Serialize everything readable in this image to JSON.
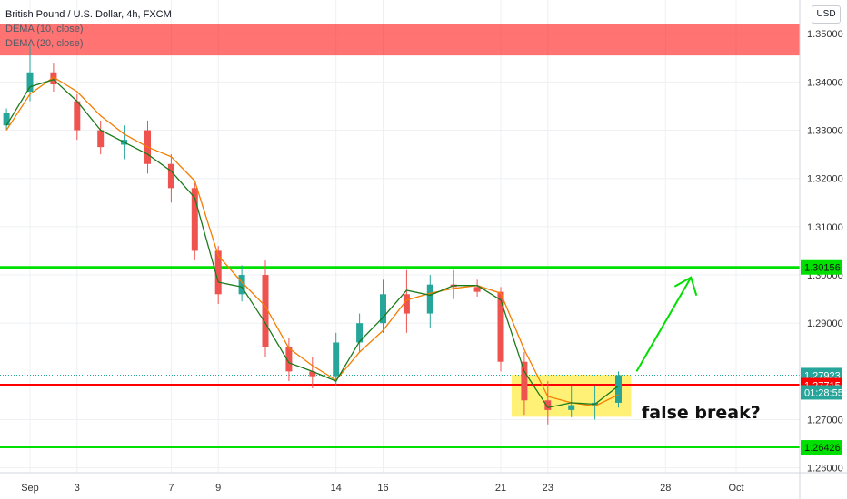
{
  "header": {
    "title": "British Pound / U.S. Dollar, 4h, FXCM",
    "indicators": [
      "DEMA (10, close)",
      "DEMA (20, close)"
    ],
    "currency_button": "USD"
  },
  "annotation": "false break?",
  "colors": {
    "up": "#26a69a",
    "down": "#ef5350",
    "dema_fast": "#1b7a1b",
    "dema_slow": "#f57c00",
    "support_line": "#ff0000",
    "green_line": "#00e000",
    "zone": "#ff0000",
    "highlight": "#ffeb3b"
  },
  "chart_data": {
    "type": "candlestick",
    "title": "British Pound / U.S. Dollar, 4h, FXCM",
    "y_ticks": [
      "1.35000",
      "1.34000",
      "1.33000",
      "1.32000",
      "1.31000",
      "1.30000",
      "1.29000",
      "1.27000",
      "1.26000"
    ],
    "ylim": [
      1.259,
      1.357
    ],
    "x_ticks": [
      {
        "date": "Sep 1",
        "label": "Sep"
      },
      {
        "date": "Sep 3",
        "label": "3"
      },
      {
        "date": "Sep 7",
        "label": "7"
      },
      {
        "date": "Sep 9",
        "label": "9"
      },
      {
        "date": "Sep 14",
        "label": "14"
      },
      {
        "date": "Sep 16",
        "label": "16"
      },
      {
        "date": "Sep 21",
        "label": "21"
      },
      {
        "date": "Sep 23",
        "label": "23"
      },
      {
        "date": "Sep 28",
        "label": "28"
      },
      {
        "date": "Oct 1",
        "label": "Oct"
      }
    ],
    "price_tags": [
      {
        "value": 1.30156,
        "label": "1.30156",
        "color": "#00e000"
      },
      {
        "value": 1.27923,
        "label": "1.27923",
        "color": "#26a69a"
      },
      {
        "value": 1.27715,
        "label": "1.27715",
        "color": "#ff0000"
      },
      {
        "value": 1.26426,
        "label": "1.26426",
        "color": "#00e000"
      }
    ],
    "countdown": "01:28:55",
    "levels": [
      {
        "value": 1.30156,
        "color": "#00e000"
      },
      {
        "value": 1.27715,
        "color": "#ff0000"
      },
      {
        "value": 1.26426,
        "color": "#00e000"
      }
    ],
    "zone": [
      1.3455,
      1.352
    ],
    "highlight": {
      "from": "Sep 22",
      "to": "Sep 26",
      "low": 1.2706,
      "high": 1.2793
    },
    "arrow": {
      "from": {
        "date": "Sep 27",
        "value": 1.28
      },
      "to": {
        "date": "Sep 28",
        "value": 1.2995
      }
    },
    "dema_fast": [
      [
        "Aug 31",
        1.331
      ],
      [
        "Sep 1",
        1.339
      ],
      [
        "Sep 2",
        1.3405
      ],
      [
        "Sep 3",
        1.336
      ],
      [
        "Sep 4",
        1.33
      ],
      [
        "Sep 5",
        1.3275
      ],
      [
        "Sep 6",
        1.325
      ],
      [
        "Sep 7",
        1.3215
      ],
      [
        "Sep 8",
        1.316
      ],
      [
        "Sep 9",
        1.2985
      ],
      [
        "Sep 10",
        1.2975
      ],
      [
        "Sep 11",
        1.29
      ],
      [
        "Sep 12",
        1.2818
      ],
      [
        "Sep 13",
        1.28
      ],
      [
        "Sep 14",
        1.278
      ],
      [
        "Sep 15",
        1.2862
      ],
      [
        "Sep 16",
        1.2912
      ],
      [
        "Sep 17",
        1.2968
      ],
      [
        "Sep 18",
        1.2958
      ],
      [
        "Sep 19",
        1.2978
      ],
      [
        "Sep 20",
        1.2978
      ],
      [
        "Sep 21",
        1.2948
      ],
      [
        "Sep 22",
        1.28
      ],
      [
        "Sep 23",
        1.2725
      ],
      [
        "Sep 24",
        1.2735
      ],
      [
        "Sep 25",
        1.2732
      ],
      [
        "Sep 26",
        1.277
      ]
    ],
    "dema_slow": [
      [
        "Aug 31",
        1.33
      ],
      [
        "Sep 1",
        1.3375
      ],
      [
        "Sep 2",
        1.341
      ],
      [
        "Sep 3",
        1.338
      ],
      [
        "Sep 4",
        1.333
      ],
      [
        "Sep 5",
        1.3292
      ],
      [
        "Sep 6",
        1.3265
      ],
      [
        "Sep 7",
        1.3245
      ],
      [
        "Sep 8",
        1.3195
      ],
      [
        "Sep 9",
        1.304
      ],
      [
        "Sep 10",
        1.2985
      ],
      [
        "Sep 11",
        1.2935
      ],
      [
        "Sep 12",
        1.2848
      ],
      [
        "Sep 13",
        1.2812
      ],
      [
        "Sep 14",
        1.2782
      ],
      [
        "Sep 15",
        1.284
      ],
      [
        "Sep 16",
        1.2885
      ],
      [
        "Sep 17",
        1.2948
      ],
      [
        "Sep 18",
        1.2962
      ],
      [
        "Sep 19",
        1.2972
      ],
      [
        "Sep 20",
        1.2978
      ],
      [
        "Sep 21",
        1.2962
      ],
      [
        "Sep 22",
        1.2845
      ],
      [
        "Sep 23",
        1.2748
      ],
      [
        "Sep 24",
        1.2735
      ],
      [
        "Sep 25",
        1.2728
      ],
      [
        "Sep 26",
        1.2752
      ]
    ],
    "candles": [
      {
        "t": "Aug 31",
        "o": 1.331,
        "h": 1.3345,
        "l": 1.33,
        "c": 1.3335
      },
      {
        "t": "Sep 1",
        "o": 1.338,
        "h": 1.348,
        "l": 1.336,
        "c": 1.342
      },
      {
        "t": "Sep 2",
        "o": 1.342,
        "h": 1.344,
        "l": 1.338,
        "c": 1.3395
      },
      {
        "t": "Sep 3",
        "o": 1.336,
        "h": 1.3375,
        "l": 1.328,
        "c": 1.33
      },
      {
        "t": "Sep 4",
        "o": 1.33,
        "h": 1.332,
        "l": 1.325,
        "c": 1.3265
      },
      {
        "t": "Sep 5",
        "o": 1.327,
        "h": 1.331,
        "l": 1.324,
        "c": 1.328
      },
      {
        "t": "Sep 6",
        "o": 1.33,
        "h": 1.332,
        "l": 1.321,
        "c": 1.323
      },
      {
        "t": "Sep 7",
        "o": 1.323,
        "h": 1.325,
        "l": 1.315,
        "c": 1.318
      },
      {
        "t": "Sep 8",
        "o": 1.318,
        "h": 1.319,
        "l": 1.303,
        "c": 1.305
      },
      {
        "t": "Sep 9",
        "o": 1.305,
        "h": 1.306,
        "l": 1.294,
        "c": 1.296
      },
      {
        "t": "Sep 10",
        "o": 1.296,
        "h": 1.302,
        "l": 1.2945,
        "c": 1.3
      },
      {
        "t": "Sep 11",
        "o": 1.3,
        "h": 1.303,
        "l": 1.283,
        "c": 1.285
      },
      {
        "t": "Sep 12",
        "o": 1.285,
        "h": 1.287,
        "l": 1.278,
        "c": 1.28
      },
      {
        "t": "Sep 13",
        "o": 1.28,
        "h": 1.283,
        "l": 1.2765,
        "c": 1.279
      },
      {
        "t": "Sep 14",
        "o": 1.279,
        "h": 1.288,
        "l": 1.277,
        "c": 1.286
      },
      {
        "t": "Sep 15",
        "o": 1.286,
        "h": 1.292,
        "l": 1.284,
        "c": 1.29
      },
      {
        "t": "Sep 16",
        "o": 1.29,
        "h": 1.299,
        "l": 1.288,
        "c": 1.296
      },
      {
        "t": "Sep 17",
        "o": 1.296,
        "h": 1.301,
        "l": 1.288,
        "c": 1.292
      },
      {
        "t": "Sep 18",
        "o": 1.292,
        "h": 1.3,
        "l": 1.289,
        "c": 1.298
      },
      {
        "t": "Sep 19",
        "o": 1.298,
        "h": 1.301,
        "l": 1.295,
        "c": 1.2975
      },
      {
        "t": "Sep 20",
        "o": 1.2975,
        "h": 1.299,
        "l": 1.2955,
        "c": 1.2965
      },
      {
        "t": "Sep 21",
        "o": 1.2965,
        "h": 1.2975,
        "l": 1.28,
        "c": 1.282
      },
      {
        "t": "Sep 22",
        "o": 1.282,
        "h": 1.284,
        "l": 1.271,
        "c": 1.274
      },
      {
        "t": "Sep 23",
        "o": 1.274,
        "h": 1.278,
        "l": 1.269,
        "c": 1.272
      },
      {
        "t": "Sep 24",
        "o": 1.272,
        "h": 1.277,
        "l": 1.2705,
        "c": 1.273
      },
      {
        "t": "Sep 25",
        "o": 1.273,
        "h": 1.277,
        "l": 1.27,
        "c": 1.2735
      },
      {
        "t": "Sep 26",
        "o": 1.2735,
        "h": 1.28,
        "l": 1.2725,
        "c": 1.2792
      }
    ]
  }
}
